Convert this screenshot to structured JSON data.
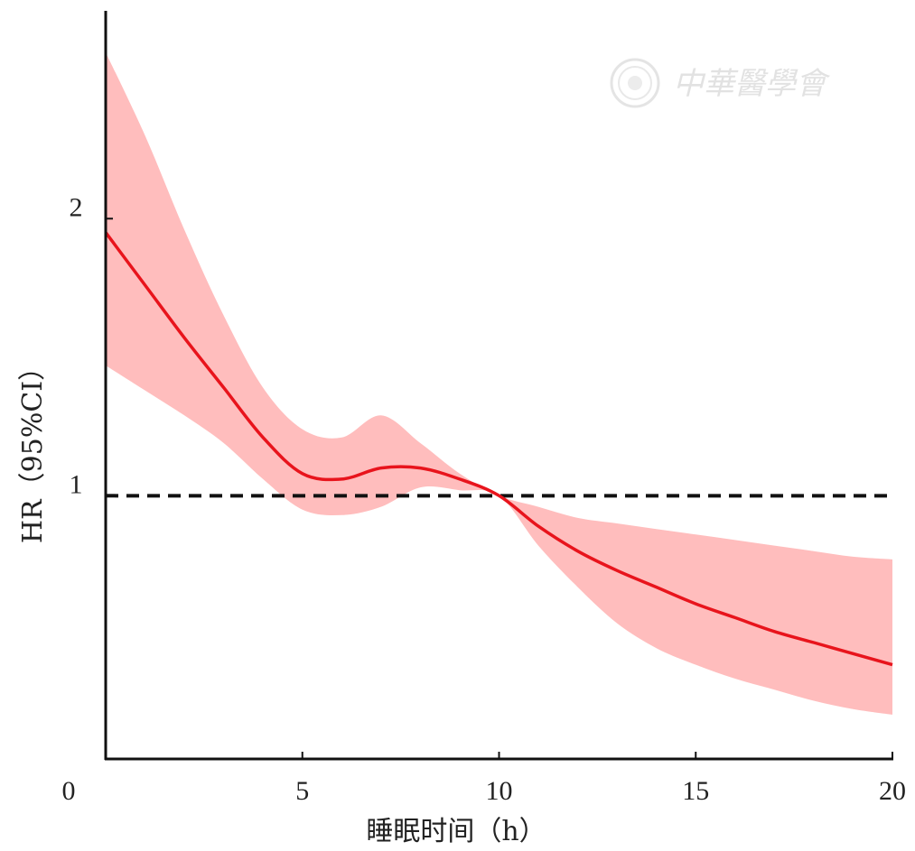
{
  "chart_data": {
    "type": "line",
    "title": "",
    "xlabel": "睡眠时间（h）",
    "ylabel": "HR（95%CI）",
    "xlim": [
      0,
      20
    ],
    "ylim": [
      0.05,
      2.75
    ],
    "x_ticks": [
      0,
      5,
      10,
      15,
      20
    ],
    "y_ticks": [
      1,
      2
    ],
    "grid": false,
    "legend": "none",
    "reference_line": {
      "y": 1,
      "style": "dashed",
      "color": "#111111"
    },
    "series": [
      {
        "line_color": "#e8141c",
        "band_color": "#ffbdbd",
        "points": [
          {
            "x": 0,
            "y": 1.95,
            "lower": 1.47,
            "upper": 2.6
          },
          {
            "x": 1,
            "y": 1.76,
            "lower": 1.38,
            "upper": 2.3
          },
          {
            "x": 2,
            "y": 1.57,
            "lower": 1.29,
            "upper": 1.96
          },
          {
            "x": 3,
            "y": 1.39,
            "lower": 1.19,
            "upper": 1.65
          },
          {
            "x": 4,
            "y": 1.21,
            "lower": 1.06,
            "upper": 1.39
          },
          {
            "x": 5,
            "y": 1.08,
            "lower": 0.95,
            "upper": 1.24
          },
          {
            "x": 6,
            "y": 1.06,
            "lower": 0.93,
            "upper": 1.21
          },
          {
            "x": 7,
            "y": 1.1,
            "lower": 0.96,
            "upper": 1.29
          },
          {
            "x": 8,
            "y": 1.1,
            "lower": 1.03,
            "upper": 1.19
          },
          {
            "x": 9,
            "y": 1.06,
            "lower": 1.02,
            "upper": 1.08
          },
          {
            "x": 10,
            "y": 1.0,
            "lower": 1.0,
            "upper": 1.0
          },
          {
            "x": 11,
            "y": 0.89,
            "lower": 0.82,
            "upper": 0.96
          },
          {
            "x": 12,
            "y": 0.8,
            "lower": 0.67,
            "upper": 0.92
          },
          {
            "x": 13,
            "y": 0.73,
            "lower": 0.54,
            "upper": 0.9
          },
          {
            "x": 14,
            "y": 0.67,
            "lower": 0.45,
            "upper": 0.88
          },
          {
            "x": 15,
            "y": 0.61,
            "lower": 0.39,
            "upper": 0.86
          },
          {
            "x": 16,
            "y": 0.56,
            "lower": 0.34,
            "upper": 0.84
          },
          {
            "x": 17,
            "y": 0.51,
            "lower": 0.3,
            "upper": 0.82
          },
          {
            "x": 18,
            "y": 0.47,
            "lower": 0.26,
            "upper": 0.8
          },
          {
            "x": 19,
            "y": 0.43,
            "lower": 0.23,
            "upper": 0.78
          },
          {
            "x": 20,
            "y": 0.39,
            "lower": 0.21,
            "upper": 0.77
          }
        ]
      }
    ]
  },
  "watermark": {
    "text": "中華醫學會"
  },
  "colors": {
    "axis": "#111111",
    "line": "#e8141c",
    "band": "#ffbdbd"
  }
}
